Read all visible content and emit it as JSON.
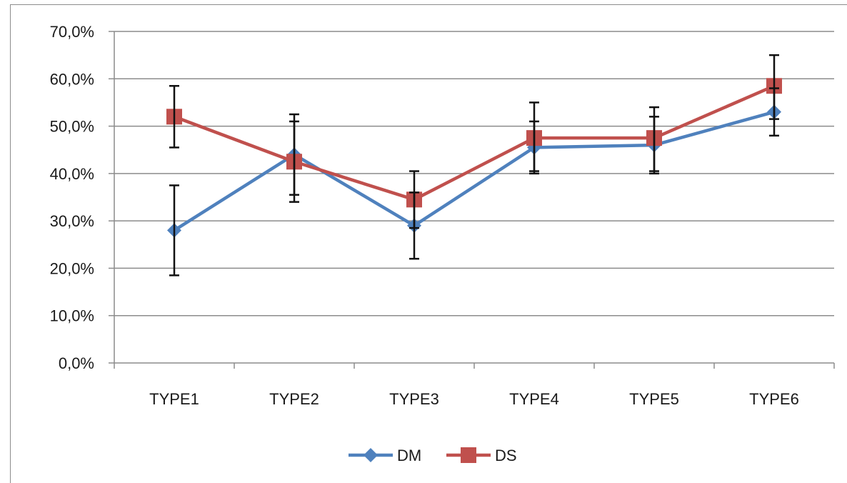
{
  "chart_data": {
    "type": "line",
    "title": "",
    "xlabel": "",
    "ylabel": "",
    "categories": [
      "TYPE1",
      "TYPE2",
      "TYPE3",
      "TYPE4",
      "TYPE5",
      "TYPE6"
    ],
    "ylim": [
      0,
      70
    ],
    "yticks": [
      {
        "value": 0,
        "label": "0,0%"
      },
      {
        "value": 10,
        "label": "10,0%"
      },
      {
        "value": 20,
        "label": "20,0%"
      },
      {
        "value": 30,
        "label": "30,0%"
      },
      {
        "value": 40,
        "label": "40,0%"
      },
      {
        "value": 50,
        "label": "50,0%"
      },
      {
        "value": 60,
        "label": "60,0%"
      },
      {
        "value": 70,
        "label": "70,0%"
      }
    ],
    "grid": true,
    "legend_position": "bottom",
    "series": [
      {
        "name": "DM",
        "color": "#4f81bd",
        "marker": "diamond",
        "values": [
          28.0,
          44.0,
          29.0,
          45.5,
          46.0,
          53.0
        ],
        "error_low": [
          18.5,
          35.5,
          22.0,
          40.0,
          40.0,
          48.0
        ],
        "error_high": [
          37.5,
          52.5,
          36.0,
          51.0,
          52.0,
          58.0
        ]
      },
      {
        "name": "DS",
        "color": "#c0504d",
        "marker": "square",
        "values": [
          52.0,
          42.5,
          34.5,
          47.5,
          47.5,
          58.5
        ],
        "error_low": [
          45.5,
          34.0,
          28.5,
          40.5,
          40.5,
          51.5
        ],
        "error_high": [
          58.5,
          51.0,
          40.5,
          55.0,
          54.0,
          65.0
        ]
      }
    ]
  }
}
